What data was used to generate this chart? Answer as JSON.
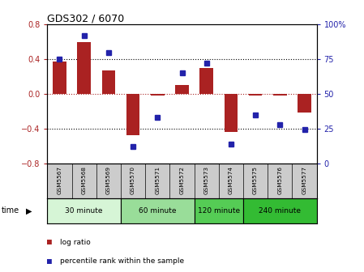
{
  "title": "GDS302 / 6070",
  "samples": [
    "GSM5567",
    "GSM5568",
    "GSM5569",
    "GSM5570",
    "GSM5571",
    "GSM5572",
    "GSM5573",
    "GSM5574",
    "GSM5575",
    "GSM5576",
    "GSM5577"
  ],
  "log_ratio": [
    0.37,
    0.6,
    0.27,
    -0.48,
    -0.02,
    0.1,
    0.3,
    -0.44,
    -0.02,
    -0.02,
    -0.22
  ],
  "percentile": [
    75,
    92,
    80,
    12,
    33,
    65,
    72,
    14,
    35,
    28,
    24
  ],
  "groups": [
    {
      "label": "30 minute",
      "start": 0,
      "end": 3,
      "color": "#d6f5d6"
    },
    {
      "label": "60 minute",
      "start": 3,
      "end": 6,
      "color": "#99dd99"
    },
    {
      "label": "120 minute",
      "start": 6,
      "end": 8,
      "color": "#55cc55"
    },
    {
      "label": "240 minute",
      "start": 8,
      "end": 11,
      "color": "#33bb33"
    }
  ],
  "bar_color": "#aa2222",
  "dot_color": "#2222aa",
  "ylim_left": [
    -0.8,
    0.8
  ],
  "ylim_right": [
    0,
    100
  ],
  "yticks_left": [
    -0.8,
    -0.4,
    0.0,
    0.4,
    0.8
  ],
  "yticks_right": [
    0,
    25,
    50,
    75,
    100
  ],
  "background_color": "#ffffff",
  "xlabel_area_color": "#cccccc",
  "time_label": "time",
  "legend_log": "log ratio",
  "legend_pct": "percentile rank within the sample"
}
